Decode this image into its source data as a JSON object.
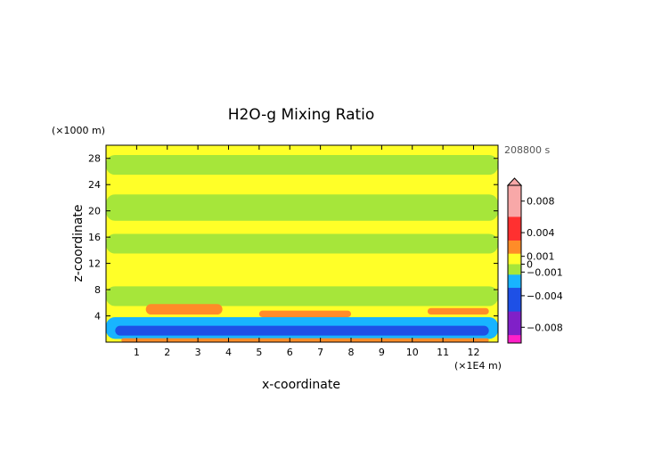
{
  "chart_data": {
    "type": "heatmap",
    "title": "H2O-g Mixing Ratio",
    "xlabel": "x-coordinate",
    "ylabel": "z-coordinate",
    "x_unit": "(×1E4 m)",
    "y_unit": "(×1000 m)",
    "time_label": "208800 s",
    "xlim": [
      0,
      12.8
    ],
    "ylim": [
      0,
      30
    ],
    "x_ticks": [
      "1",
      "2",
      "3",
      "4",
      "5",
      "6",
      "7",
      "8",
      "9",
      "10",
      "11",
      "12"
    ],
    "y_ticks": [
      "4",
      "8",
      "12",
      "16",
      "20",
      "24",
      "28"
    ],
    "colorbar": {
      "tick_labels": [
        "0.008",
        "0.004",
        "0.001",
        "0",
        "−0.001",
        "−0.004",
        "−0.008"
      ],
      "tick_values": [
        0.008,
        0.004,
        0.001,
        0,
        -0.001,
        -0.004,
        -0.008
      ],
      "range": [
        -0.01,
        0.01
      ],
      "colors": {
        "pos_high": "#f8a8a8",
        "pos_mid": "#ff3030",
        "pos_low": "#ff8c28",
        "near_zero_pos": "#ffd84a",
        "zero_band": "#ffff28",
        "near_zero_neg": "#a6e63a",
        "neg_low": "#18b4ff",
        "neg_mid": "#1e50e6",
        "neg_high": "#8020c8",
        "neg_max": "#ff20c8"
      }
    },
    "field_regions": [
      {
        "value": 0.0005,
        "x": [
          0,
          12.8
        ],
        "z": [
          0,
          30
        ]
      },
      {
        "value": -0.0006,
        "x": [
          0,
          12.8
        ],
        "z": [
          25.5,
          28.5
        ]
      },
      {
        "value": -0.0006,
        "x": [
          0,
          12.8
        ],
        "z": [
          18.5,
          22.5
        ]
      },
      {
        "value": -0.0006,
        "x": [
          0,
          12.8
        ],
        "z": [
          13.5,
          16.5
        ]
      },
      {
        "value": -0.0006,
        "x": [
          0,
          12.8
        ],
        "z": [
          5.5,
          8.5
        ]
      },
      {
        "value": 0.002,
        "x": [
          1.3,
          3.8
        ],
        "z": [
          4.2,
          5.8
        ]
      },
      {
        "value": 0.002,
        "x": [
          5,
          8
        ],
        "z": [
          3.8,
          4.8
        ]
      },
      {
        "value": 0.002,
        "x": [
          10.5,
          12.5
        ],
        "z": [
          4.2,
          5.2
        ]
      },
      {
        "value": -0.002,
        "x": [
          0,
          12.8
        ],
        "z": [
          0.5,
          3.8
        ]
      },
      {
        "value": -0.004,
        "x": [
          0.3,
          12.5
        ],
        "z": [
          1,
          2.5
        ]
      },
      {
        "value": 0.002,
        "x": [
          0.5,
          12.5
        ],
        "z": [
          0,
          0.6
        ]
      }
    ]
  }
}
